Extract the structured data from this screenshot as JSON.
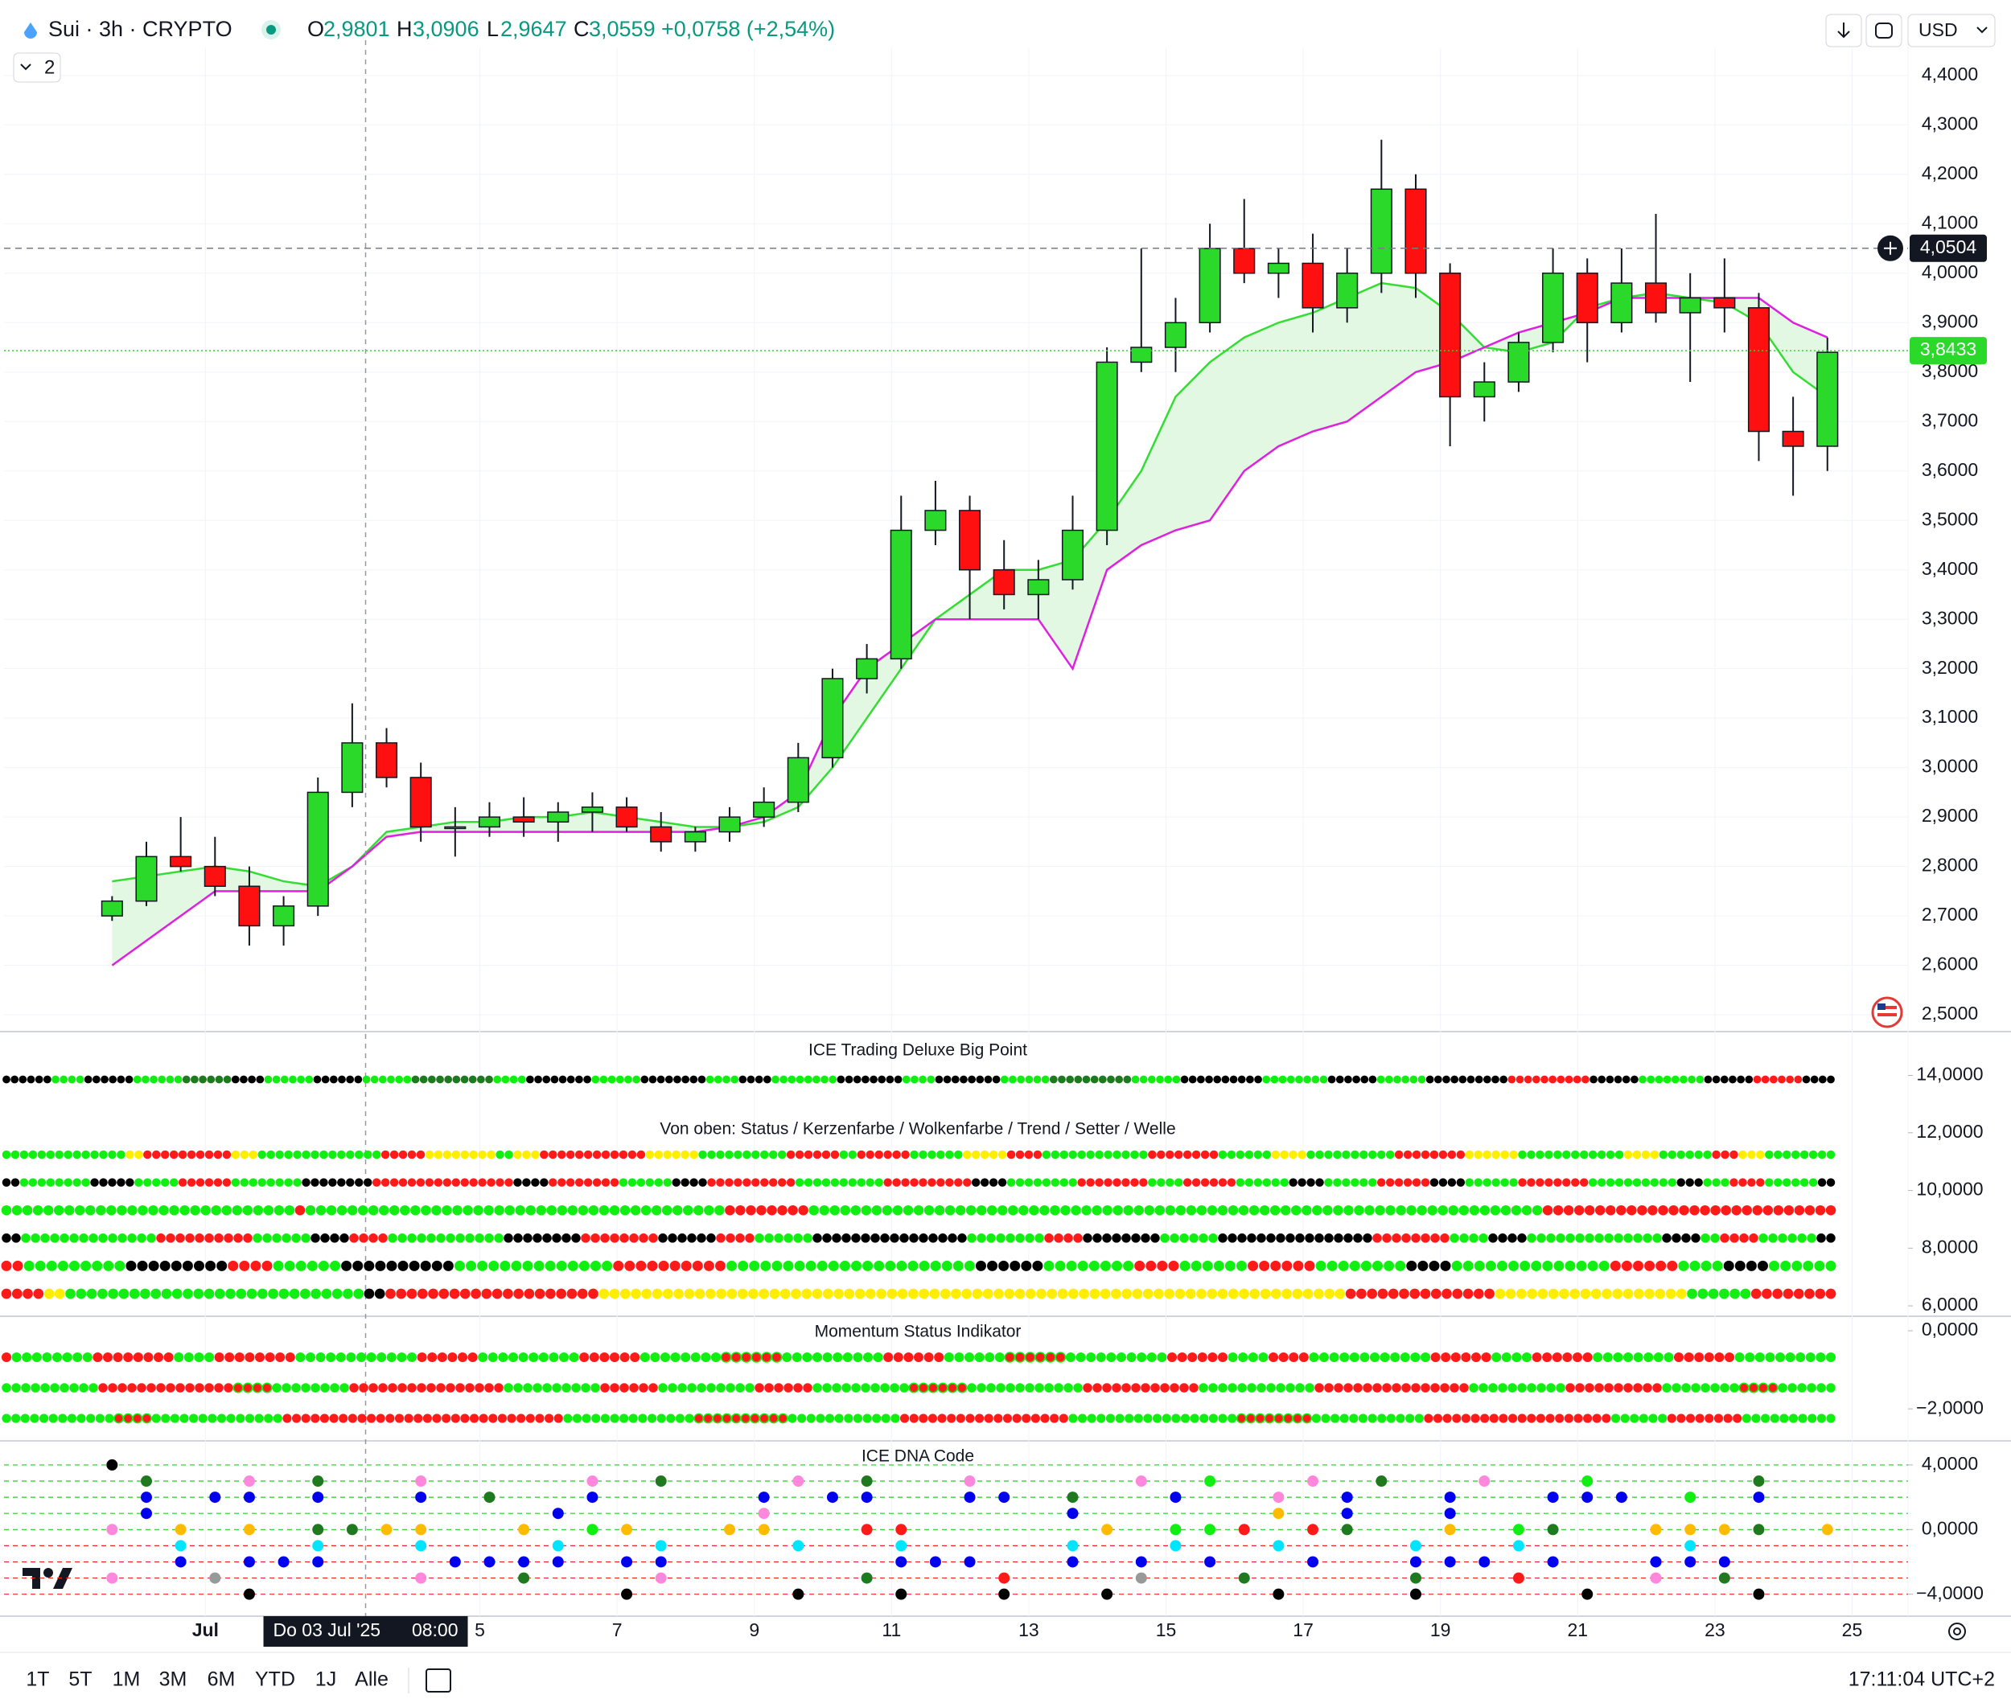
{
  "header": {
    "symbol": "Sui · 3h · CRYPTO",
    "o_label": "O",
    "open": "2,9801",
    "h_label": "H",
    "high": "3,0906",
    "l_label": "L",
    "low": "2,9647",
    "c_label": "C",
    "close": "3,0559",
    "change": "+0,0758 (+2,54%)",
    "indicator_count": "2",
    "currency": "USD"
  },
  "chart_data": {
    "type": "candlestick",
    "up_color": "#2bd92b",
    "down_color": "#ff1010",
    "cloud_color": "#e3f8e3",
    "grid": true,
    "candles": {
      "open": [
        2.7,
        2.73,
        2.82,
        2.8,
        2.76,
        2.68,
        2.72,
        2.95,
        3.05,
        2.98,
        2.88,
        2.88,
        2.9,
        2.89,
        2.91,
        2.92,
        2.88,
        2.85,
        2.87,
        2.9,
        2.93,
        3.02,
        3.18,
        3.22,
        3.48,
        3.52,
        3.4,
        3.35,
        3.38,
        3.48,
        3.82,
        3.85,
        3.9,
        4.05,
        4.0,
        4.02,
        3.93,
        4.0,
        4.17,
        4.0,
        3.75,
        3.78,
        3.86,
        4.0,
        3.9,
        3.98,
        3.92,
        3.95,
        3.93,
        3.68,
        3.65
      ],
      "high": [
        2.74,
        2.85,
        2.9,
        2.86,
        2.8,
        2.74,
        2.98,
        3.13,
        3.08,
        3.01,
        2.92,
        2.93,
        2.94,
        2.93,
        2.95,
        2.94,
        2.91,
        2.88,
        2.92,
        2.96,
        3.05,
        3.2,
        3.25,
        3.55,
        3.58,
        3.55,
        3.46,
        3.42,
        3.55,
        3.85,
        4.05,
        3.95,
        4.1,
        4.15,
        4.05,
        4.08,
        4.05,
        4.27,
        4.2,
        4.02,
        3.82,
        3.88,
        4.05,
        4.03,
        4.05,
        4.12,
        4.0,
        4.03,
        3.96,
        3.75,
        3.87
      ],
      "low": [
        2.69,
        2.72,
        2.79,
        2.74,
        2.64,
        2.64,
        2.7,
        2.92,
        2.96,
        2.85,
        2.82,
        2.86,
        2.86,
        2.85,
        2.87,
        2.87,
        2.83,
        2.83,
        2.85,
        2.88,
        2.91,
        3.0,
        3.15,
        3.2,
        3.45,
        3.3,
        3.32,
        3.3,
        3.36,
        3.45,
        3.8,
        3.8,
        3.88,
        3.98,
        3.95,
        3.88,
        3.9,
        3.96,
        3.95,
        3.65,
        3.7,
        3.76,
        3.84,
        3.82,
        3.88,
        3.9,
        3.78,
        3.88,
        3.62,
        3.55,
        3.6
      ],
      "close": [
        2.73,
        2.82,
        2.8,
        2.76,
        2.68,
        2.72,
        2.95,
        3.05,
        2.98,
        2.88,
        2.88,
        2.9,
        2.89,
        2.91,
        2.92,
        2.88,
        2.85,
        2.87,
        2.9,
        2.93,
        3.02,
        3.18,
        3.22,
        3.48,
        3.52,
        3.4,
        3.35,
        3.38,
        3.48,
        3.82,
        3.85,
        3.9,
        4.05,
        4.0,
        4.02,
        3.93,
        4.0,
        4.17,
        4.0,
        3.75,
        3.78,
        3.86,
        4.0,
        3.9,
        3.98,
        3.92,
        3.95,
        3.93,
        3.68,
        3.65,
        3.84
      ]
    },
    "lines": [
      {
        "color": "#33dd33",
        "values": [
          2.77,
          2.78,
          2.79,
          2.8,
          2.79,
          2.77,
          2.76,
          2.8,
          2.87,
          2.88,
          2.89,
          2.89,
          2.9,
          2.9,
          2.91,
          2.9,
          2.89,
          2.88,
          2.88,
          2.89,
          2.92,
          3.0,
          3.1,
          3.2,
          3.3,
          3.35,
          3.4,
          3.4,
          3.42,
          3.5,
          3.6,
          3.75,
          3.82,
          3.87,
          3.9,
          3.92,
          3.95,
          3.98,
          3.97,
          3.92,
          3.85,
          3.84,
          3.86,
          3.93,
          3.95,
          3.96,
          3.95,
          3.94,
          3.9,
          3.8,
          3.75
        ]
      },
      {
        "color": "#e020e0",
        "values": [
          2.6,
          2.65,
          2.7,
          2.75,
          2.75,
          2.75,
          2.75,
          2.8,
          2.86,
          2.87,
          2.87,
          2.87,
          2.87,
          2.87,
          2.87,
          2.87,
          2.87,
          2.87,
          2.88,
          2.9,
          2.95,
          3.1,
          3.2,
          3.25,
          3.3,
          3.3,
          3.3,
          3.3,
          3.2,
          3.4,
          3.45,
          3.48,
          3.5,
          3.6,
          3.65,
          3.68,
          3.7,
          3.75,
          3.8,
          3.82,
          3.85,
          3.88,
          3.9,
          3.92,
          3.95,
          3.95,
          3.95,
          3.95,
          3.95,
          3.9,
          3.87
        ]
      }
    ],
    "ylim": [
      2.466,
      4.455
    ],
    "yticks": [
      {
        "value": 2.5,
        "label": "2,5000"
      },
      {
        "value": 2.6,
        "label": "2,6000"
      },
      {
        "value": 2.7,
        "label": "2,7000"
      },
      {
        "value": 2.8,
        "label": "2,8000"
      },
      {
        "value": 2.9,
        "label": "2,9000"
      },
      {
        "value": 3.0,
        "label": "3,0000"
      },
      {
        "value": 3.1,
        "label": "3,1000"
      },
      {
        "value": 3.2,
        "label": "3,2000"
      },
      {
        "value": 3.3,
        "label": "3,3000"
      },
      {
        "value": 3.4,
        "label": "3,4000"
      },
      {
        "value": 3.5,
        "label": "3,5000"
      },
      {
        "value": 3.6,
        "label": "3,6000"
      },
      {
        "value": 3.7,
        "label": "3,7000"
      },
      {
        "value": 3.8,
        "label": "3,8000"
      },
      {
        "value": 3.9,
        "label": "3,9000"
      },
      {
        "value": 4.0,
        "label": "4,0000"
      },
      {
        "value": 4.1,
        "label": "4,1000"
      },
      {
        "value": 4.2,
        "label": "4,2000"
      },
      {
        "value": 4.3,
        "label": "4,3000"
      },
      {
        "value": 4.4,
        "label": "4,4000"
      }
    ],
    "xlim": [
      -3.15,
      52.35
    ],
    "xticks": [
      {
        "value": 2.72,
        "label": "Jul"
      },
      {
        "value": 10.72,
        "label": "5"
      },
      {
        "value": 14.72,
        "label": "7"
      },
      {
        "value": 18.72,
        "label": "9"
      },
      {
        "value": 22.72,
        "label": "11"
      },
      {
        "value": 26.72,
        "label": "13"
      },
      {
        "value": 30.72,
        "label": "15"
      },
      {
        "value": 34.72,
        "label": "17"
      },
      {
        "value": 38.72,
        "label": "19"
      },
      {
        "value": 42.72,
        "label": "21"
      },
      {
        "value": 46.72,
        "label": "23"
      },
      {
        "value": 50.72,
        "label": "25"
      }
    ],
    "price_marks": [
      {
        "value": 4.0504,
        "label": "4,0504",
        "color": "#131722"
      },
      {
        "value": 3.8433,
        "label": "3,8433",
        "color": "#2bd92b"
      }
    ],
    "crosshair": {
      "value": 7.39,
      "date": "Do 03 Jul '25",
      "time": "08:00"
    }
  },
  "palette": {
    "g": "#11ee11",
    "d": "#1f7a1f",
    "k": "#000000",
    "r": "#ff1a1a",
    "y": "#ffee00",
    "x": "#ff1a1a",
    "p": "#ff88dd",
    "b": "#0000ee",
    "o": "#ffbb00",
    "c": "#00e5ff",
    "n": "#999999"
  },
  "indicators": [
    {
      "title": "ICE Trading Deluxe Big Point",
      "ylim": [
        13.0,
        15.0
      ],
      "yticks": [
        {
          "value": 14,
          "label": "14,0000"
        }
      ],
      "rows": [
        "k6 g4 k6 g6 d6 k4 g6 k6 g6 d10 g4 k8 g6 k8 g4 k4 g8 k8 g4 k8 g6 d10 g6 k10 g8 k6 g6 k10 r10 k6 g8 k6 r6 k4"
      ]
    },
    {
      "title": "Von oben: Status / Kerzenfarbe / Wolkenfarbe / Trend / Setter / Welle",
      "ylim": [
        5.64,
        12.58
      ],
      "yticks": [
        {
          "value": 12,
          "label": "12,0000"
        },
        {
          "value": 10,
          "label": "10,0000"
        },
        {
          "value": 8,
          "label": "8,0000"
        },
        {
          "value": 6,
          "label": "6,0000"
        }
      ],
      "rows": [
        "g14 y2 r10 y3 g14 r5 y8 g2 y3 r12 y6 g10 r6 g2 r6 g6 y5 r4 g12 r8 g6 y4 g10 r8 y6 g12 y4 g6 r3 y3 g8",
        "k2 g8 k5 g5 r6 g8 k8 r16 k4 r8 g6 k4 r10 g10 r10 k4 g8 r8 g4 r6 g6 k4 g6 r6 k4 g6 r8 g10 k3 g3 r4 g6 k2",
        "g28 r1 g40 r8 g70 r28",
        "k2 g14 r10 g6 k4 r4 g12 k8 r8 k6 r4 g6 k16 g8 r4 k8 g6 k16 r8 g4 k4 g14 k4 g2 r4 g6 k2",
        "r2 g9 k9 r4 g6 k10 g14 r10 g22 k6 g8 r4 g6 r6 g8 k4 g14 r6 g4 k4 g6",
        "r4 y2 g28 k2 r20 y70 r14 y18 g6 r8"
      ]
    },
    {
      "title": "Momentum Status Indikator",
      "ylim": [
        -2.82,
        0.31
      ],
      "yticks": [
        {
          "value": 0,
          "label": "0,0000"
        },
        {
          "value": -2,
          "label": "−2,0000"
        }
      ],
      "rows": [
        "r1 g8 r8 g4 r8 g12 r6 g10 r6 g8 x6 g10 r6 g6 x6 g10 r6 g4 r4 g12 r6 g4 r6 g8 r6 g10",
        "g10 r14 x4 g8 r16 g10 r6 g10 r6 g10 x6 g12 r12 g12 r16 g10 r10 g8 x4 g6",
        "g12 x4 g14 r30 g14 x10 g12 r18 g18 x8 g12 r20 g6 r8 g10"
      ]
    },
    {
      "title": "ICE DNA Code",
      "ylim": [
        -5.36,
        5.34
      ],
      "yticks": [
        {
          "value": 4,
          "label": "4,0000"
        },
        {
          "value": 0,
          "label": "0,0000"
        },
        {
          "value": -4,
          "label": "−4,0000"
        }
      ],
      "levels": [
        "k..................................................",
        ".d..p.d..p....p.d...p.d..p....p.g..p.d..p..g....d..",
        ".b.bb.b..b.d..b....b.bb..bb.d..b..p.b..b..bbb.g.b..",
        ".b...........b.....p........b.....o.b..b...........",
        "p.o.o.ddoo..o.go..oo..rr.....o.ggr.rd..o.gd..oood.o",
        "..c...c..c...c..c...c..c....c..c..c...c..c....c....",
        "..b.bbb...bbbb.bb......bbb..b.b.b..b..bbb.b..bbb...",
        "p..n.....p..d...p.....d...r...n..d....d..r...p.d...",
        "....k..........k....k..k..k..k....k...k....k....k.."
      ]
    }
  ],
  "toolbar": {
    "ranges": [
      "1T",
      "5T",
      "1M",
      "3M",
      "6M",
      "YTD",
      "1J",
      "Alle"
    ],
    "clock": "17:11:04 UTC+2"
  }
}
